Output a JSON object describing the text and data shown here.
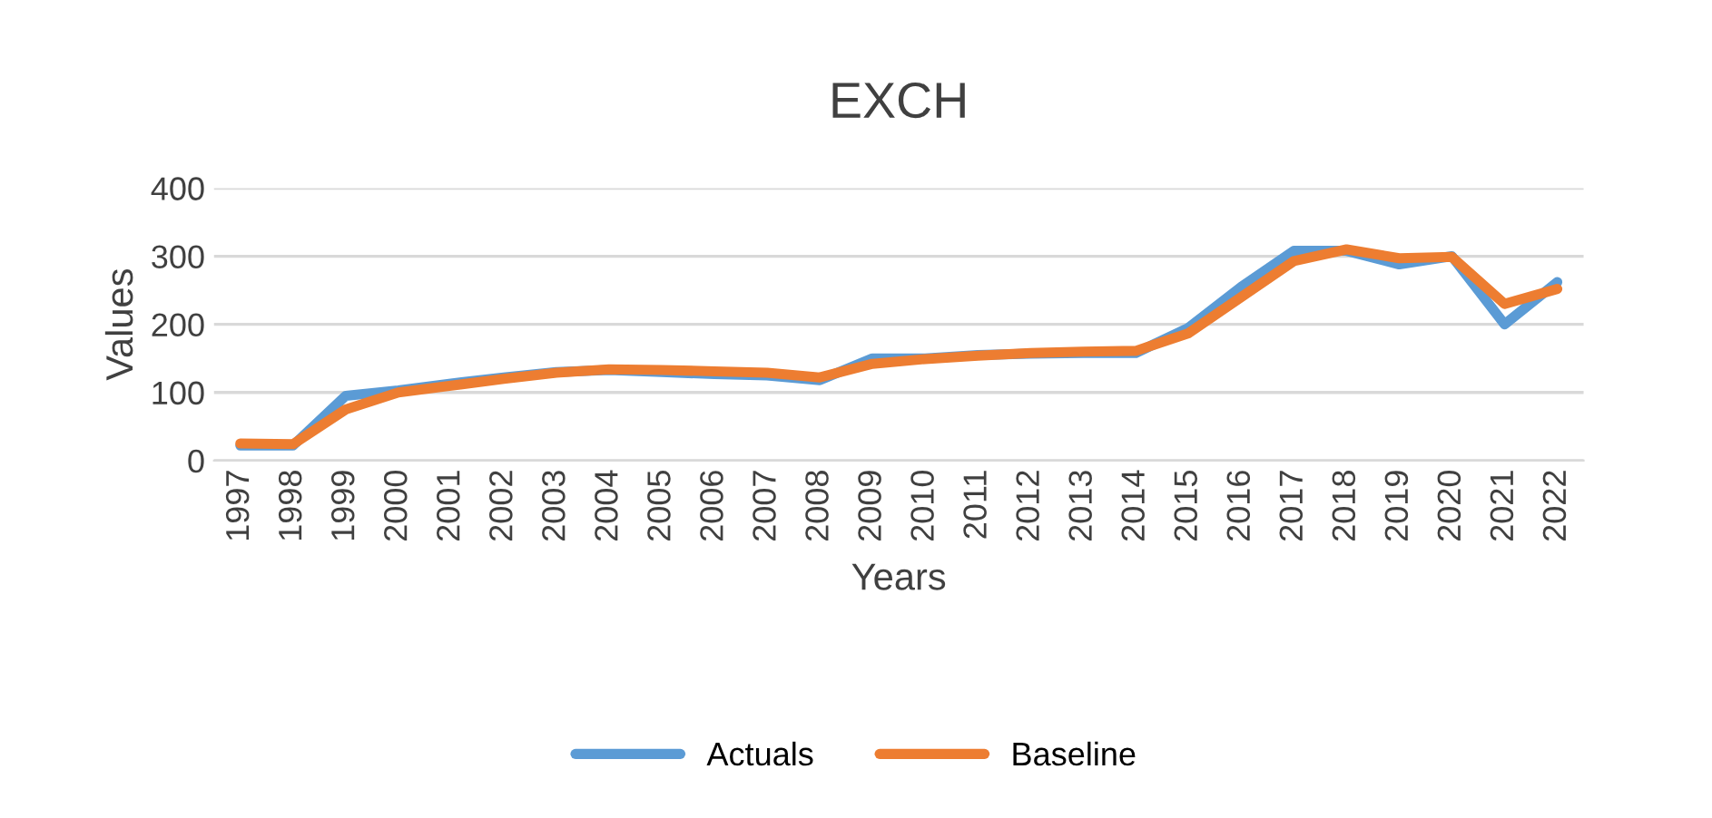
{
  "chart_data": {
    "type": "line",
    "title": "EXCH",
    "xlabel": "Years",
    "ylabel": "Values",
    "categories": [
      "1997",
      "1998",
      "1999",
      "2000",
      "2001",
      "2002",
      "2003",
      "2004",
      "2005",
      "2006",
      "2007",
      "2008",
      "2009",
      "2010",
      "2011",
      "2012",
      "2013",
      "2014",
      "2015",
      "2016",
      "2017",
      "2018",
      "2019",
      "2020",
      "2021",
      "2022"
    ],
    "series": [
      {
        "name": "Actuals",
        "color": "#5b9bd5",
        "values": [
          22,
          22,
          95,
          103,
          113,
          122,
          130,
          133,
          130,
          127,
          125,
          118,
          150,
          150,
          155,
          157,
          158,
          158,
          195,
          255,
          308,
          308,
          288,
          300,
          200,
          262
        ]
      },
      {
        "name": "Baseline",
        "color": "#ed7d31",
        "values": [
          25,
          24,
          75,
          100,
          110,
          120,
          129,
          134,
          133,
          131,
          129,
          122,
          142,
          149,
          154,
          158,
          160,
          161,
          187,
          240,
          293,
          310,
          297,
          299,
          230,
          252
        ]
      }
    ],
    "ylim": [
      0,
      400
    ],
    "yticks": [
      0,
      100,
      200,
      300,
      400
    ],
    "grid": "y",
    "legend": "bottom",
    "marker": "none",
    "line_style": "solid"
  }
}
